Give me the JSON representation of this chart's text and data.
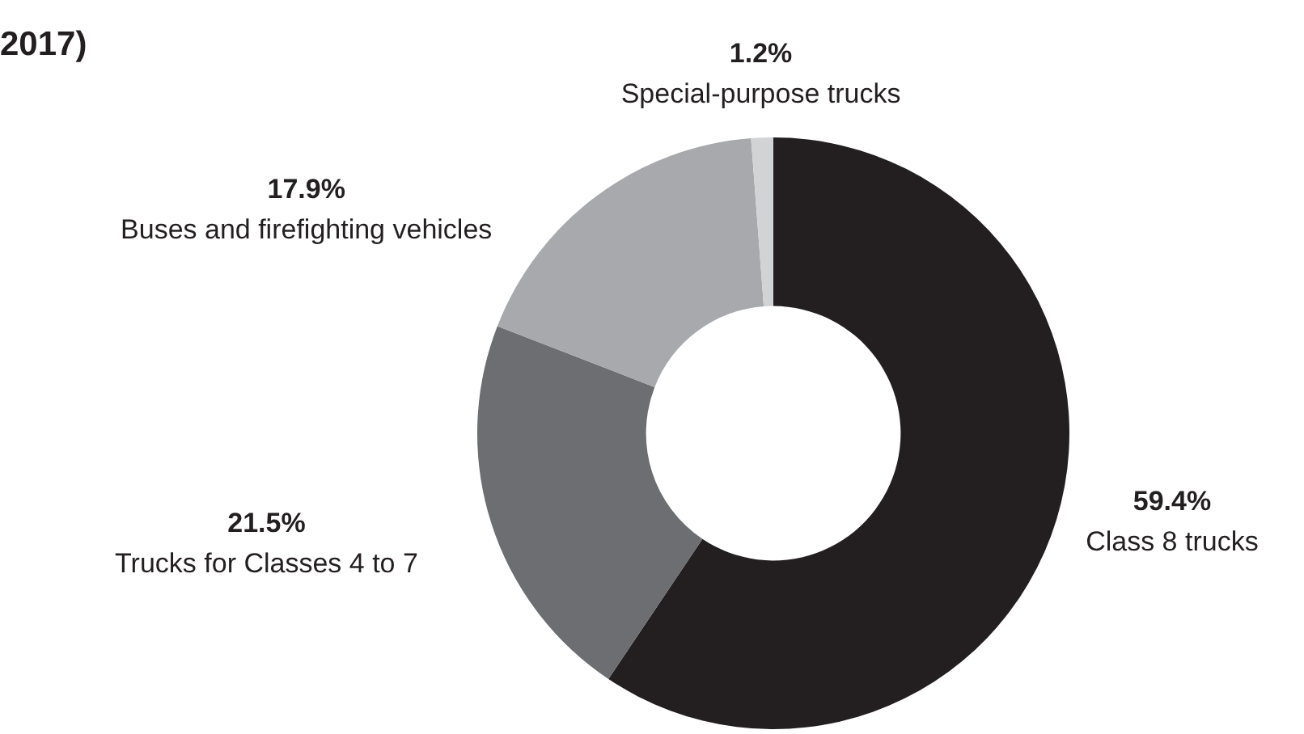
{
  "chart_data": {
    "type": "donut",
    "title": "2017)",
    "categories": [
      "Class 8 trucks",
      "Trucks for Classes 4 to 7",
      "Buses and firefighting vehicles",
      "Special-purpose trucks"
    ],
    "values": [
      59.4,
      21.5,
      17.9,
      1.2
    ],
    "value_labels": [
      "59.4%",
      "21.5%",
      "17.9%",
      "1.2%"
    ],
    "colors": [
      "#231f20",
      "#6d6e71",
      "#a7a9ac",
      "#d1d3d4"
    ],
    "legend": false
  }
}
